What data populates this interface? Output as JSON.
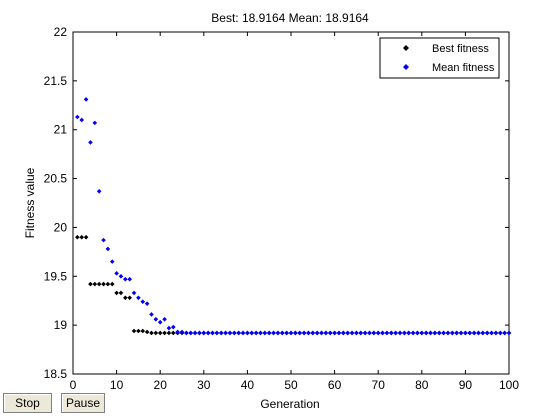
{
  "chart_data": {
    "type": "scatter",
    "title": "Best: 18.9164 Mean: 18.9164",
    "xlabel": "Generation",
    "ylabel": "Fitness value",
    "xlim": [
      0,
      100
    ],
    "ylim": [
      18.5,
      22
    ],
    "xticks": [
      0,
      10,
      20,
      30,
      40,
      50,
      60,
      70,
      80,
      90,
      100
    ],
    "yticks": [
      18.5,
      19,
      19.5,
      20,
      20.5,
      21,
      21.5,
      22
    ],
    "legend_position": "top-right",
    "series": [
      {
        "name": "Best fitness",
        "color": "#000000",
        "marker": "diamond",
        "x": [
          1,
          2,
          3,
          4,
          5,
          6,
          7,
          8,
          9,
          10,
          11,
          12,
          13,
          14,
          15,
          16,
          17,
          18,
          19,
          20,
          21,
          22,
          23,
          24,
          25,
          26,
          27,
          28,
          29,
          30,
          31,
          32,
          33,
          34,
          35,
          36,
          37,
          38,
          39,
          40,
          41,
          42,
          43,
          44,
          45,
          46,
          47,
          48,
          49,
          50,
          51,
          52,
          53,
          54,
          55,
          56,
          57,
          58,
          59,
          60,
          61,
          62,
          63,
          64,
          65,
          66,
          67,
          68,
          69,
          70,
          71,
          72,
          73,
          74,
          75,
          76,
          77,
          78,
          79,
          80,
          81,
          82,
          83,
          84,
          85,
          86,
          87,
          88,
          89,
          90,
          91,
          92,
          93,
          94,
          95,
          96,
          97,
          98,
          99,
          100
        ],
        "y": [
          19.9,
          19.9,
          19.9,
          19.42,
          19.42,
          19.42,
          19.42,
          19.42,
          19.42,
          19.33,
          19.33,
          19.28,
          19.28,
          18.94,
          18.94,
          18.94,
          18.93,
          18.92,
          18.92,
          18.92,
          18.92,
          18.92,
          18.92,
          18.92,
          18.92,
          18.92,
          18.92,
          18.92,
          18.92,
          18.92,
          18.92,
          18.92,
          18.92,
          18.92,
          18.92,
          18.92,
          18.92,
          18.92,
          18.92,
          18.92,
          18.92,
          18.92,
          18.92,
          18.92,
          18.92,
          18.92,
          18.92,
          18.92,
          18.92,
          18.92,
          18.92,
          18.92,
          18.92,
          18.92,
          18.92,
          18.92,
          18.92,
          18.92,
          18.92,
          18.92,
          18.92,
          18.92,
          18.92,
          18.92,
          18.92,
          18.92,
          18.92,
          18.92,
          18.92,
          18.92,
          18.92,
          18.92,
          18.92,
          18.92,
          18.92,
          18.92,
          18.92,
          18.92,
          18.92,
          18.92,
          18.92,
          18.92,
          18.92,
          18.92,
          18.92,
          18.92,
          18.92,
          18.92,
          18.92,
          18.92,
          18.92,
          18.92,
          18.92,
          18.92,
          18.92,
          18.92,
          18.92,
          18.92,
          18.92,
          18.92
        ]
      },
      {
        "name": "Mean fitness",
        "color": "#0000ff",
        "marker": "diamond",
        "x": [
          1,
          2,
          3,
          4,
          5,
          6,
          7,
          8,
          9,
          10,
          11,
          12,
          13,
          14,
          15,
          16,
          17,
          18,
          19,
          20,
          21,
          22,
          23,
          24,
          25,
          26,
          27,
          28,
          29,
          30,
          31,
          32,
          33,
          34,
          35,
          36,
          37,
          38,
          39,
          40,
          41,
          42,
          43,
          44,
          45,
          46,
          47,
          48,
          49,
          50,
          51,
          52,
          53,
          54,
          55,
          56,
          57,
          58,
          59,
          60,
          61,
          62,
          63,
          64,
          65,
          66,
          67,
          68,
          69,
          70,
          71,
          72,
          73,
          74,
          75,
          76,
          77,
          78,
          79,
          80,
          81,
          82,
          83,
          84,
          85,
          86,
          87,
          88,
          89,
          90,
          91,
          92,
          93,
          94,
          95,
          96,
          97,
          98,
          99,
          100
        ],
        "y": [
          21.13,
          21.1,
          21.31,
          20.87,
          21.07,
          20.37,
          19.87,
          19.78,
          19.65,
          19.53,
          19.5,
          19.47,
          19.47,
          19.33,
          19.28,
          19.24,
          19.22,
          19.11,
          19.06,
          19.03,
          19.06,
          18.97,
          18.98,
          18.93,
          18.93,
          18.92,
          18.92,
          18.92,
          18.92,
          18.92,
          18.92,
          18.92,
          18.92,
          18.92,
          18.92,
          18.92,
          18.92,
          18.92,
          18.92,
          18.92,
          18.92,
          18.92,
          18.92,
          18.92,
          18.92,
          18.92,
          18.92,
          18.92,
          18.92,
          18.92,
          18.92,
          18.92,
          18.92,
          18.92,
          18.92,
          18.92,
          18.92,
          18.92,
          18.92,
          18.92,
          18.92,
          18.92,
          18.92,
          18.92,
          18.92,
          18.92,
          18.92,
          18.92,
          18.92,
          18.92,
          18.92,
          18.92,
          18.92,
          18.92,
          18.92,
          18.92,
          18.92,
          18.92,
          18.92,
          18.92,
          18.92,
          18.92,
          18.92,
          18.92,
          18.92,
          18.92,
          18.92,
          18.92,
          18.92,
          18.92,
          18.92,
          18.92,
          18.92,
          18.92,
          18.92,
          18.92,
          18.92,
          18.92,
          18.92,
          18.92
        ]
      }
    ]
  },
  "controls": {
    "stop_label": "Stop",
    "pause_label": "Pause"
  }
}
